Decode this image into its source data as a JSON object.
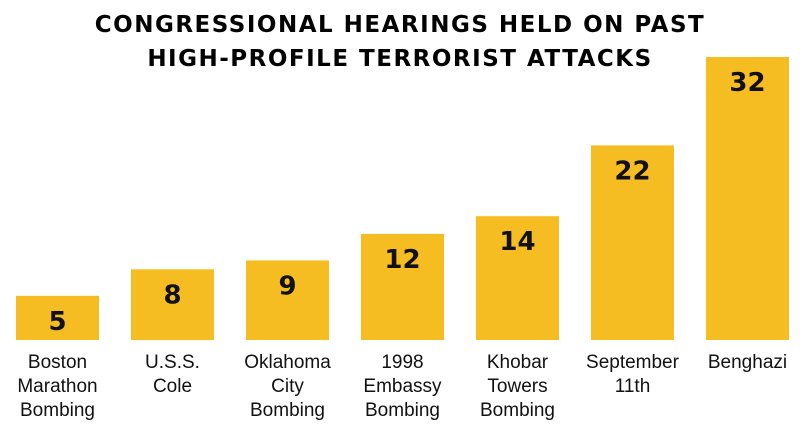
{
  "header": {
    "title_line1": "CONGRESSIONAL HEARINGS HELD ON PAST",
    "title_line2": "HIGH-PROFILE TERRORIST ATTACKS"
  },
  "chart_data": {
    "type": "bar",
    "title": "CONGRESSIONAL HEARINGS HELD ON PAST HIGH-PROFILE TERRORIST ATTACKS",
    "categories": [
      "Boston Marathon Bombing",
      "U.S.S. Cole",
      "Oklahoma City Bombing",
      "1998 Embassy Bombing",
      "Khobar Towers Bombing",
      "September 11th",
      "Benghazi"
    ],
    "category_lines": [
      [
        "Boston",
        "Marathon",
        "Bombing"
      ],
      [
        "U.S.S.",
        "Cole"
      ],
      [
        "Oklahoma",
        "City",
        "Bombing"
      ],
      [
        "1998",
        "Embassy",
        "Bombing"
      ],
      [
        "Khobar",
        "Towers",
        "Bombing"
      ],
      [
        "September",
        "11th"
      ],
      [
        "Benghazi"
      ]
    ],
    "values": [
      5,
      8,
      9,
      12,
      14,
      22,
      32
    ],
    "value_labels": [
      "5",
      "8",
      "9",
      "12",
      "14",
      "22",
      "32"
    ],
    "xlabel": "",
    "ylabel": "",
    "ylim": [
      0,
      32
    ],
    "grid": false,
    "legend": "none",
    "bar_color": "#F6BD22",
    "text_color": "#111111"
  }
}
